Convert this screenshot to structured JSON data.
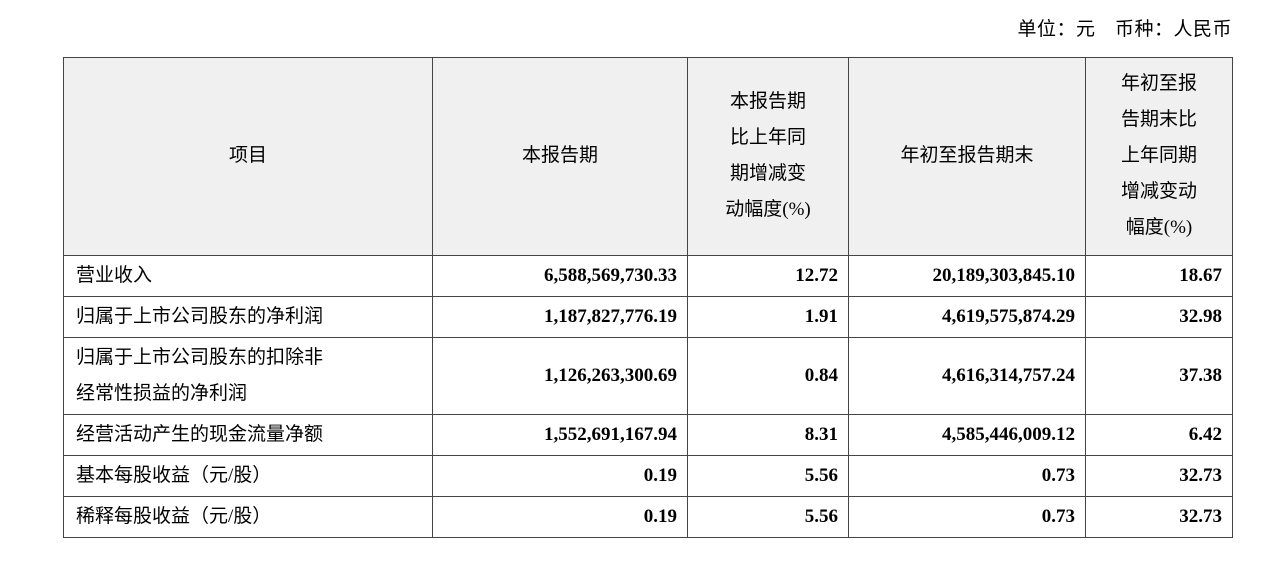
{
  "page": {
    "unit_label": "单位：元　币种：人民币"
  },
  "table": {
    "headers": [
      "项目",
      "本报告期",
      "本报告期\n比上年同\n期增减变\n动幅度(%)",
      "年初至报告期末",
      "年初至报\n告期末比\n上年同期\n增减变动\n幅度(%)"
    ],
    "rows": [
      {
        "item": "营业收入",
        "current_period": "6,588,569,730.33",
        "current_change": "12.72",
        "ytd": "20,189,303,845.10",
        "ytd_change": "18.67"
      },
      {
        "item": "归属于上市公司股东的净利润",
        "current_period": "1,187,827,776.19",
        "current_change": "1.91",
        "ytd": "4,619,575,874.29",
        "ytd_change": "32.98"
      },
      {
        "item": "归属于上市公司股东的扣除非\n经常性损益的净利润",
        "current_period": "1,126,263,300.69",
        "current_change": "0.84",
        "ytd": "4,616,314,757.24",
        "ytd_change": "37.38"
      },
      {
        "item": "经营活动产生的现金流量净额",
        "current_period": "1,552,691,167.94",
        "current_change": "8.31",
        "ytd": "4,585,446,009.12",
        "ytd_change": "6.42"
      },
      {
        "item": "基本每股收益（元/股）",
        "current_period": "0.19",
        "current_change": "5.56",
        "ytd": "0.73",
        "ytd_change": "32.73"
      },
      {
        "item": "稀释每股收益（元/股）",
        "current_period": "0.19",
        "current_change": "5.56",
        "ytd": "0.73",
        "ytd_change": "32.73"
      }
    ]
  }
}
